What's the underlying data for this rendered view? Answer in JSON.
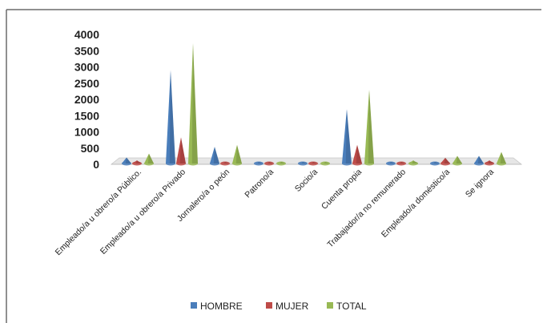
{
  "chart_data": {
    "type": "bar",
    "style": "3d-cone",
    "categories": [
      "Empleado/a u obrero/a Público.",
      "Empleado/a u obrero/a Privado",
      "Jornalero/a o peón",
      "Patrono/a",
      "Socio/a",
      "Cuenta propia",
      "Trabajador/a no remunerado",
      "Empleado/a doméstico/a",
      "Se ignora"
    ],
    "series": [
      {
        "name": "HOMBRE",
        "color": "#4a7ebb",
        "values": [
          210,
          2900,
          540,
          60,
          40,
          1700,
          70,
          60,
          260
        ]
      },
      {
        "name": "MUJER",
        "color": "#be4b48",
        "values": [
          120,
          830,
          60,
          20,
          20,
          600,
          50,
          200,
          120
        ]
      },
      {
        "name": "TOTAL",
        "color": "#98b954",
        "values": [
          330,
          3730,
          600,
          80,
          60,
          2300,
          120,
          260,
          380
        ]
      }
    ],
    "yticks": [
      "0",
      "500",
      "1000",
      "1500",
      "2000",
      "2500",
      "3000",
      "3500",
      "4000"
    ],
    "ylim": [
      0,
      4000
    ],
    "grid": false,
    "legend_position": "bottom"
  }
}
